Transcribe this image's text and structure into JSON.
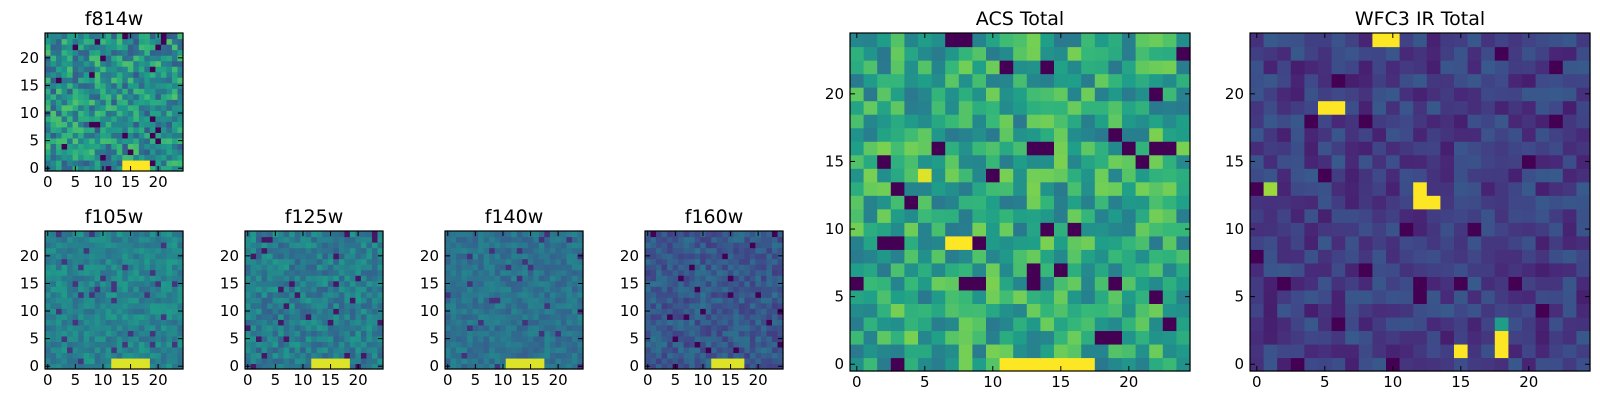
{
  "chart_data": [
    {
      "type": "heatmap",
      "title": "f814w",
      "colormap": "viridis",
      "nx": 25,
      "ny": 25,
      "xlim": [
        -0.5,
        24.5
      ],
      "ylim": [
        -0.5,
        24.5
      ],
      "xticks": [
        0,
        5,
        10,
        15,
        20
      ],
      "yticks": [
        0,
        5,
        10,
        15,
        20
      ],
      "xtick_labels": [
        "0",
        "5",
        "10",
        "15",
        "20"
      ],
      "ytick_labels": [
        "0",
        "5",
        "10",
        "15",
        "20"
      ],
      "seed": 11,
      "base": 0.5,
      "noise": 0.22,
      "hotspots": [
        {
          "x": 14,
          "y": 0,
          "width": 5,
          "height": 2,
          "value": 1.0
        }
      ]
    },
    {
      "type": "heatmap",
      "title": "f105w",
      "colormap": "viridis",
      "nx": 25,
      "ny": 25,
      "xlim": [
        -0.5,
        24.5
      ],
      "ylim": [
        -0.5,
        24.5
      ],
      "xticks": [
        0,
        5,
        10,
        15,
        20
      ],
      "yticks": [
        0,
        5,
        10,
        15,
        20
      ],
      "xtick_labels": [
        "0",
        "5",
        "10",
        "15",
        "20"
      ],
      "ytick_labels": [
        "0",
        "5",
        "10",
        "15",
        "20"
      ],
      "seed": 23,
      "base": 0.45,
      "noise": 0.1,
      "hotspots": [
        {
          "x": 12,
          "y": 0,
          "width": 7,
          "height": 2,
          "value": 0.95
        }
      ]
    },
    {
      "type": "heatmap",
      "title": "f125w",
      "colormap": "viridis",
      "nx": 25,
      "ny": 25,
      "xlim": [
        -0.5,
        24.5
      ],
      "ylim": [
        -0.5,
        24.5
      ],
      "xticks": [
        0,
        5,
        10,
        15,
        20
      ],
      "yticks": [
        0,
        5,
        10,
        15,
        20
      ],
      "xtick_labels": [
        "0",
        "5",
        "10",
        "15",
        "20"
      ],
      "ytick_labels": [
        "0",
        "5",
        "10",
        "15",
        "20"
      ],
      "seed": 37,
      "base": 0.42,
      "noise": 0.12,
      "hotspots": [
        {
          "x": 12,
          "y": 0,
          "width": 7,
          "height": 2,
          "value": 0.95
        }
      ]
    },
    {
      "type": "heatmap",
      "title": "f140w",
      "colormap": "viridis",
      "nx": 25,
      "ny": 25,
      "xlim": [
        -0.5,
        24.5
      ],
      "ylim": [
        -0.5,
        24.5
      ],
      "xticks": [
        0,
        5,
        10,
        15,
        20
      ],
      "yticks": [
        0,
        5,
        10,
        15,
        20
      ],
      "xtick_labels": [
        "0",
        "5",
        "10",
        "15",
        "20"
      ],
      "ytick_labels": [
        "0",
        "5",
        "10",
        "15",
        "20"
      ],
      "seed": 41,
      "base": 0.38,
      "noise": 0.08,
      "hotspots": [
        {
          "x": 11,
          "y": 0,
          "width": 7,
          "height": 2,
          "value": 0.95
        }
      ]
    },
    {
      "type": "heatmap",
      "title": "f160w",
      "colormap": "viridis",
      "nx": 25,
      "ny": 25,
      "xlim": [
        -0.5,
        24.5
      ],
      "ylim": [
        -0.5,
        24.5
      ],
      "xticks": [
        0,
        5,
        10,
        15,
        20
      ],
      "yticks": [
        0,
        5,
        10,
        15,
        20
      ],
      "xtick_labels": [
        "0",
        "5",
        "10",
        "15",
        "20"
      ],
      "ytick_labels": [
        "0",
        "5",
        "10",
        "15",
        "20"
      ],
      "seed": 53,
      "base": 0.28,
      "noise": 0.1,
      "hotspots": [
        {
          "x": 12,
          "y": 0,
          "width": 6,
          "height": 2,
          "value": 0.95
        }
      ]
    },
    {
      "type": "heatmap",
      "title": "ACS Total",
      "colormap": "viridis",
      "nx": 25,
      "ny": 25,
      "xlim": [
        -0.5,
        24.5
      ],
      "ylim": [
        -0.5,
        24.5
      ],
      "xticks": [
        0,
        5,
        10,
        15,
        20
      ],
      "yticks": [
        0,
        5,
        10,
        15,
        20
      ],
      "xtick_labels": [
        "0",
        "5",
        "10",
        "15",
        "20"
      ],
      "ytick_labels": [
        "0",
        "5",
        "10",
        "15",
        "20"
      ],
      "seed": 67,
      "base": 0.6,
      "noise": 0.2,
      "hotspots": [
        {
          "x": 11,
          "y": 0,
          "width": 7,
          "height": 1,
          "value": 1.0
        },
        {
          "x": 7,
          "y": 9,
          "width": 2,
          "height": 1,
          "value": 1.0
        },
        {
          "x": 5,
          "y": 14,
          "width": 1,
          "height": 1,
          "value": 0.95
        }
      ]
    },
    {
      "type": "heatmap",
      "title": "WFC3 IR Total",
      "colormap": "viridis",
      "nx": 25,
      "ny": 25,
      "xlim": [
        -0.5,
        24.5
      ],
      "ylim": [
        -0.5,
        24.5
      ],
      "xticks": [
        0,
        5,
        10,
        15,
        20
      ],
      "yticks": [
        0,
        5,
        10,
        15,
        20
      ],
      "xtick_labels": [
        "0",
        "5",
        "10",
        "15",
        "20"
      ],
      "ytick_labels": [
        "0",
        "5",
        "10",
        "15",
        "20"
      ],
      "seed": 79,
      "base": 0.18,
      "noise": 0.1,
      "hotspots": [
        {
          "x": 9,
          "y": 24,
          "width": 2,
          "height": 1,
          "value": 1.0
        },
        {
          "x": 5,
          "y": 19,
          "width": 2,
          "height": 1,
          "value": 1.0
        },
        {
          "x": 12,
          "y": 12,
          "width": 2,
          "height": 1,
          "value": 1.0
        },
        {
          "x": 12,
          "y": 13,
          "width": 1,
          "height": 1,
          "value": 1.0
        },
        {
          "x": 18,
          "y": 1,
          "width": 1,
          "height": 2,
          "value": 1.0
        },
        {
          "x": 15,
          "y": 1,
          "width": 1,
          "height": 1,
          "value": 1.0
        },
        {
          "x": 1,
          "y": 13,
          "width": 1,
          "height": 1,
          "value": 0.85
        },
        {
          "x": 18,
          "y": 3,
          "width": 1,
          "height": 1,
          "value": 0.55
        }
      ]
    }
  ]
}
